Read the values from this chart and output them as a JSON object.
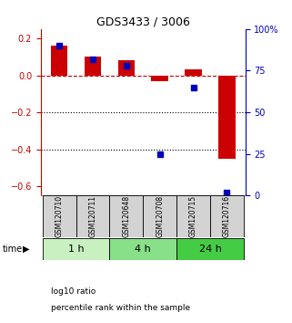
{
  "title": "GDS3433 / 3006",
  "samples": [
    "GSM120710",
    "GSM120711",
    "GSM120648",
    "GSM120708",
    "GSM120715",
    "GSM120716"
  ],
  "log10_ratio": [
    0.16,
    0.1,
    0.08,
    -0.03,
    0.03,
    -0.45
  ],
  "percentile_rank": [
    90,
    82,
    78,
    25,
    65,
    2
  ],
  "time_groups": [
    {
      "label": "1 h",
      "start": 0,
      "end": 1,
      "color": "#c8f0c0"
    },
    {
      "label": "4 h",
      "start": 2,
      "end": 3,
      "color": "#88e088"
    },
    {
      "label": "24 h",
      "start": 4,
      "end": 5,
      "color": "#44cc44"
    }
  ],
  "ylim_left": [
    -0.65,
    0.25
  ],
  "ylim_right": [
    0,
    100
  ],
  "yticks_left": [
    -0.6,
    -0.4,
    -0.2,
    0.0,
    0.2
  ],
  "yticks_right": [
    0,
    25,
    50,
    75,
    100
  ],
  "bar_width": 0.5,
  "red_color": "#cc0000",
  "blue_color": "#0000bb",
  "legend_items": [
    {
      "color": "#cc0000",
      "label": "log10 ratio"
    },
    {
      "color": "#0000bb",
      "label": "percentile rank within the sample"
    }
  ]
}
